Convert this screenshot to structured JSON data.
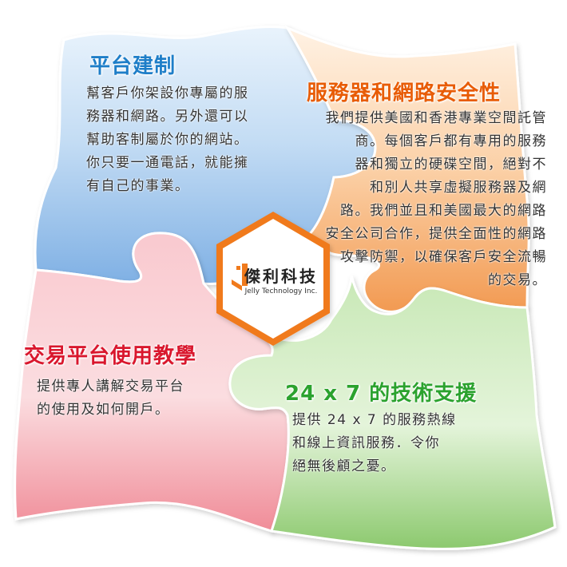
{
  "colors": {
    "blue": "#9cc4ec",
    "orange": "#f7b37a",
    "red": "#f6b4bc",
    "green": "#a6d78e",
    "blue_title": "#1e7ec8",
    "orange_title": "#e85c06",
    "red_title": "#d9172d",
    "green_title": "#2ba22e"
  },
  "pieces": {
    "top_left": {
      "title": "平台建制",
      "body": "幫客戶你架設你專屬的服\n務器和網路。另外還可以\n幫助客制屬於你的網站。\n你只要一通電話，就能擁\n有自己的事業。"
    },
    "top_right": {
      "title": "服務器和網路安全性",
      "body": "我們提供美國和香港專業空間託管\n商。每個客戶都有專用的服務\n器和獨立的硬碟空間，絕對不\n和別人共享虛擬服務器及網\n路。我們並且和美國最大的網路\n安全公司合作，提供全面性的網路\n攻擊防禦，以確保客戶安全流暢\n的交易。"
    },
    "bottom_left": {
      "title": "交易平台使用教學",
      "body": "提供專人講解交易平台\n的使用及如何開戶。"
    },
    "bottom_right": {
      "title": "24 x 7 的技術支援",
      "body": "提供 24 x 7 的服務熱線\n和線上資訊服務．令你\n絕無後顧之憂。"
    }
  },
  "logo": {
    "name_cn": "傑利科技",
    "name_en": "Jelly Technology Inc.",
    "icon": "j-mark-icon"
  }
}
